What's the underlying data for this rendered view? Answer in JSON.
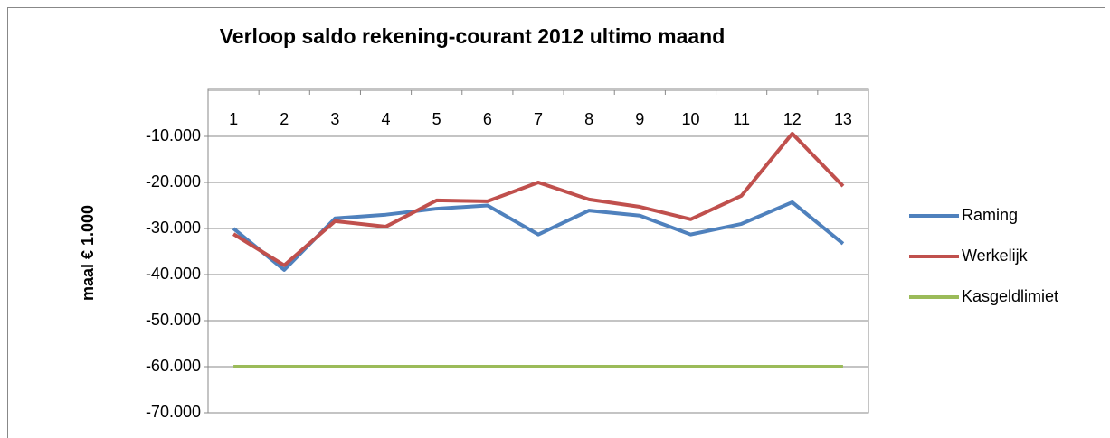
{
  "chart_data": {
    "type": "line",
    "title": "Verloop saldo rekening-courant 2012 ultimo maand",
    "y_label": "maal € 1.000",
    "categories": [
      "1",
      "2",
      "3",
      "4",
      "5",
      "6",
      "7",
      "8",
      "9",
      "10",
      "11",
      "12",
      "13"
    ],
    "series": [
      {
        "name": "Raming",
        "color": "#4f81bd",
        "values": [
          -30000,
          -39000,
          -27800,
          -27000,
          -25700,
          -25000,
          -31300,
          -26100,
          -27200,
          -31300,
          -29000,
          -24300,
          -33300
        ]
      },
      {
        "name": "Werkelijk",
        "color": "#c0504d",
        "values": [
          -31200,
          -38000,
          -28400,
          -29600,
          -23900,
          -24100,
          -20000,
          -23700,
          -25300,
          -28000,
          -22900,
          -9400,
          -20800
        ]
      },
      {
        "name": "Kasgeldlimiet",
        "color": "#9bbb59",
        "values": [
          -60000,
          -60000,
          -60000,
          -60000,
          -60000,
          -60000,
          -60000,
          -60000,
          -60000,
          -60000,
          -60000,
          -60000,
          -60000
        ]
      }
    ],
    "ylim": [
      -70000,
      0
    ],
    "yticks": [
      {
        "value": -70000,
        "label": "-70.000"
      },
      {
        "value": -60000,
        "label": "-60.000"
      },
      {
        "value": -50000,
        "label": "-50.000"
      },
      {
        "value": -40000,
        "label": "-40.000"
      },
      {
        "value": -30000,
        "label": "-30.000"
      },
      {
        "value": -20000,
        "label": "-20.000"
      },
      {
        "value": -10000,
        "label": "-10.000"
      }
    ],
    "grid": true,
    "legend": "right"
  }
}
